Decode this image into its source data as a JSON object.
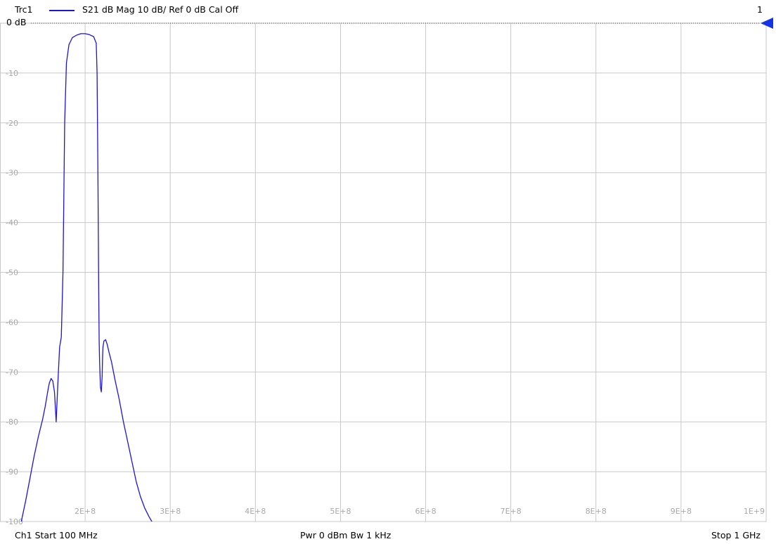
{
  "header": {
    "trace_name": "Trc1",
    "trace_info": "S21  dB Mag  10 dB/ Ref 0 dB  Cal Off",
    "channel_number": "1",
    "ref_label": "0 dB"
  },
  "footer": {
    "start": "Ch1  Start  100 MHz",
    "power_bw": "Pwr  0 dBm  Bw  1 kHz",
    "stop": "Stop  1 GHz"
  },
  "colors": {
    "trace": "#1c14d8",
    "grid": "#c8c8c8",
    "ref_marker": "#1432e6",
    "tick_label": "#a8a8a8"
  },
  "chart_data": {
    "type": "line",
    "title": "",
    "xlabel": "",
    "ylabel": "",
    "xlim": [
      100000000,
      1000000000
    ],
    "ylim": [
      -100,
      0
    ],
    "grid": true,
    "y_tick_labels": [
      "-10",
      "-20",
      "-30",
      "-40",
      "-50",
      "-60",
      "-70",
      "-80",
      "-90",
      "-100"
    ],
    "y_tick_values": [
      -10,
      -20,
      -30,
      -40,
      -50,
      -60,
      -70,
      -80,
      -90,
      -100
    ],
    "x_tick_labels": [
      "2E+8",
      "3E+8",
      "4E+8",
      "5E+8",
      "6E+8",
      "7E+8",
      "8E+8",
      "9E+8",
      "1E+9"
    ],
    "x_tick_values": [
      200000000,
      300000000,
      400000000,
      500000000,
      600000000,
      700000000,
      800000000,
      900000000,
      1000000000
    ],
    "series": [
      {
        "name": "Trc1",
        "x": [
          125000000,
          130000000,
          135000000,
          140000000,
          145000000,
          150000000,
          153000000,
          155000000,
          156500000,
          158000000,
          160000000,
          162000000,
          164000000,
          166000000,
          168000000,
          170000000,
          172000000,
          174000000,
          176000000,
          178000000,
          181000000,
          185000000,
          190000000,
          195000000,
          200000000,
          205000000,
          210000000,
          213000000,
          214000000,
          215000000,
          216000000,
          216500000,
          217000000,
          218000000,
          219000000,
          220000000,
          220500000,
          221000000,
          222000000,
          224000000,
          226000000,
          228000000,
          231000000,
          235000000,
          240000000,
          245000000,
          250000000,
          255000000,
          260000000,
          265000000,
          270000000,
          275000000,
          280000000,
          285000000,
          290000000,
          295000000,
          300000000,
          303000000,
          306000000
        ],
        "y": [
          -100,
          -96,
          -91.5,
          -87,
          -83,
          -79.5,
          -77,
          -75,
          -73.5,
          -72.2,
          -71.3,
          -71.8,
          -74,
          -80,
          -72,
          -65,
          -63,
          -50,
          -20,
          -8,
          -4.3,
          -2.9,
          -2.4,
          -2.1,
          -2.1,
          -2.3,
          -2.7,
          -4,
          -10,
          -30,
          -55,
          -64,
          -68,
          -73,
          -74,
          -71,
          -67,
          -65,
          -63.8,
          -63.5,
          -64.5,
          -66,
          -68,
          -71.5,
          -75.5,
          -80,
          -84,
          -88,
          -92,
          -95,
          -97.3,
          -99,
          -100.5,
          -101,
          -101.5,
          -102,
          -102.5,
          -103,
          -103.5
        ]
      }
    ]
  }
}
